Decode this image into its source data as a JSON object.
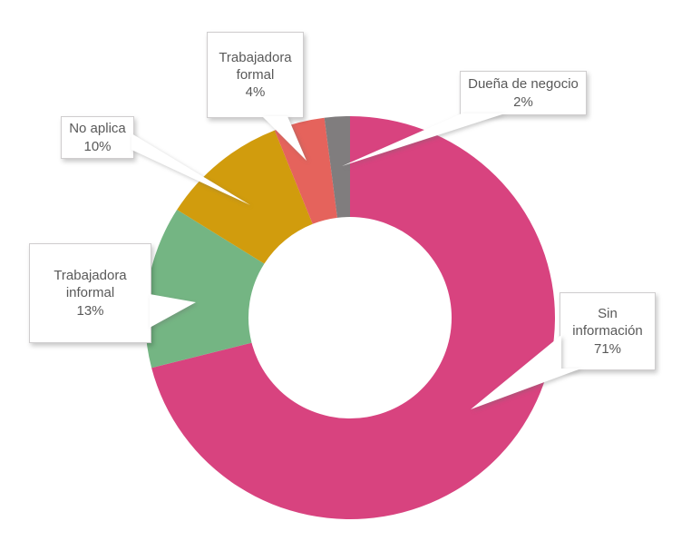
{
  "figure": {
    "background": "#FFFFFF",
    "title": ""
  },
  "chart_data": {
    "type": "pie",
    "subtype": "donut",
    "unit": "%",
    "total": 100,
    "start_angle_deg": 0,
    "direction": "clockwise",
    "hole_ratio": 0.5,
    "legend": "none",
    "data_labels": "callout-boxes-with-leader-lines",
    "slices": [
      {
        "label": "Sin información",
        "value": 71,
        "pct_label": "71%",
        "color": "#D8437F"
      },
      {
        "label": "Trabajadora informal",
        "value": 13,
        "pct_label": "13%",
        "color": "#74B583"
      },
      {
        "label": "No aplica",
        "value": 10,
        "pct_label": "10%",
        "color": "#D19C0D"
      },
      {
        "label": "Trabajadora formal",
        "value": 4,
        "pct_label": "4%",
        "color": "#E5635C"
      },
      {
        "label": "Dueña de negocio",
        "value": 2,
        "pct_label": "2%",
        "color": "#807D7E"
      }
    ]
  }
}
